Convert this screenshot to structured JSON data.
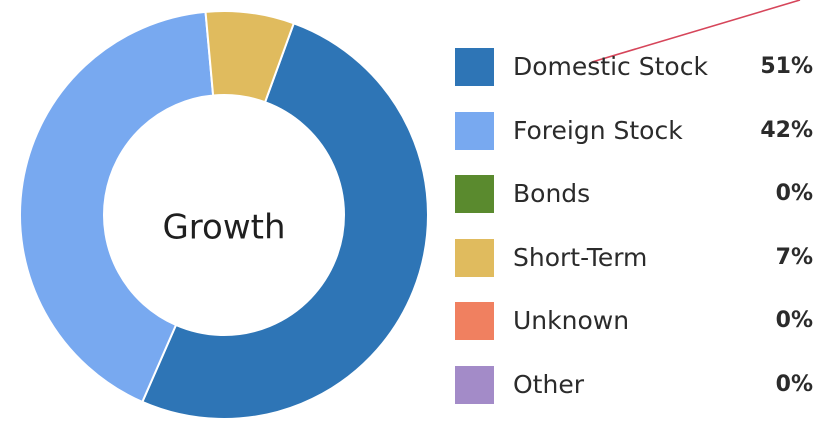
{
  "chart_data": {
    "type": "pie",
    "donut": true,
    "center_label": "Growth",
    "categories": [
      "Domestic Stock",
      "Foreign Stock",
      "Bonds",
      "Short-Term",
      "Unknown",
      "Other"
    ],
    "values": [
      51,
      42,
      0,
      7,
      0,
      0
    ],
    "value_labels": [
      "51%",
      "42%",
      "0%",
      "7%",
      "0%",
      "0%"
    ],
    "colors": [
      "#2e75b6",
      "#78a9f0",
      "#5a8a2e",
      "#e0bb5e",
      "#f08060",
      "#a38bc8"
    ],
    "legend_position": "right"
  },
  "annotation": {
    "pointer_line_color": "#d6455a"
  }
}
